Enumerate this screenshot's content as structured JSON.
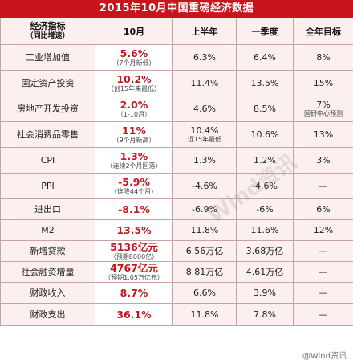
{
  "title": "2015年10月中国重磅经济数据",
  "header": {
    "indicator": "经济指标",
    "indicator_sub": "（同比增速）",
    "oct": "10月",
    "h1": "上半年",
    "q1": "一季度",
    "target": "全年目标"
  },
  "rows": [
    {
      "name": "工业增加值",
      "oct": "5.6%",
      "oct_note": "（7个月新低）",
      "h1": "6.3%",
      "h1_note": "",
      "q1": "6.4%",
      "target": "8%",
      "target_note": ""
    },
    {
      "name": "固定资产投资",
      "oct": "10.2%",
      "oct_note": "（创15年来最低）",
      "h1": "11.4%",
      "h1_note": "",
      "q1": "13.5%",
      "target": "15%",
      "target_note": ""
    },
    {
      "name": "房地产开发投资",
      "oct": "2.0%",
      "oct_note": "（1-10月）",
      "h1": "4.6%",
      "h1_note": "",
      "q1": "8.5%",
      "target": "7%",
      "target_note": "国研中心预测"
    },
    {
      "name": "社会消费品零售",
      "oct": "11%",
      "oct_note": "（9个月新高）",
      "h1": "10.4%",
      "h1_note": "近15年最低",
      "q1": "10.6%",
      "target": "13%",
      "target_note": ""
    },
    {
      "name": "CPI",
      "oct": "1.3%",
      "oct_note": "（连续2个月回落）",
      "h1": "1.3%",
      "h1_note": "",
      "q1": "1.2%",
      "target": "3%",
      "target_note": ""
    },
    {
      "name": "PPI",
      "oct": "-5.9%",
      "oct_note": "（连降44个月）",
      "h1": "-4.6%",
      "h1_note": "",
      "q1": "-4.6%",
      "target": "—",
      "target_note": ""
    },
    {
      "name": "进出口",
      "oct": "-8.1%",
      "oct_note": "",
      "h1": "-6.9%",
      "h1_note": "",
      "q1": "-6%",
      "target": "6%",
      "target_note": ""
    },
    {
      "name": "M2",
      "oct": "13.5%",
      "oct_note": "",
      "h1": "11.8%",
      "h1_note": "",
      "q1": "11.6%",
      "target": "12%",
      "target_note": ""
    },
    {
      "name": "新增贷款",
      "oct": "5136亿元",
      "oct_note": "（预期8000亿）",
      "h1": "6.56万亿",
      "h1_note": "",
      "q1": "3.68万亿",
      "target": "—",
      "target_note": ""
    },
    {
      "name": "社会融资增量",
      "oct": "4767亿元",
      "oct_note": "（预期1.05万亿元）",
      "h1": "8.81万亿",
      "h1_note": "",
      "q1": "4.61万亿",
      "target": "—",
      "target_note": ""
    },
    {
      "name": "财政收入",
      "oct": "8.7%",
      "oct_note": "",
      "h1": "6.6%",
      "h1_note": "",
      "q1": "3.9%",
      "target": "—",
      "target_note": ""
    },
    {
      "name": "财政支出",
      "oct": "36.1%",
      "oct_note": "",
      "h1": "11.8%",
      "h1_note": "",
      "q1": "7.8%",
      "target": "—",
      "target_note": ""
    }
  ],
  "watermark": "Wind资讯",
  "weibo_handle": "@Wind资讯",
  "colors": {
    "accent": "#c8151d",
    "cell_bg": "#fcefef",
    "border": "#c9a3a3"
  }
}
